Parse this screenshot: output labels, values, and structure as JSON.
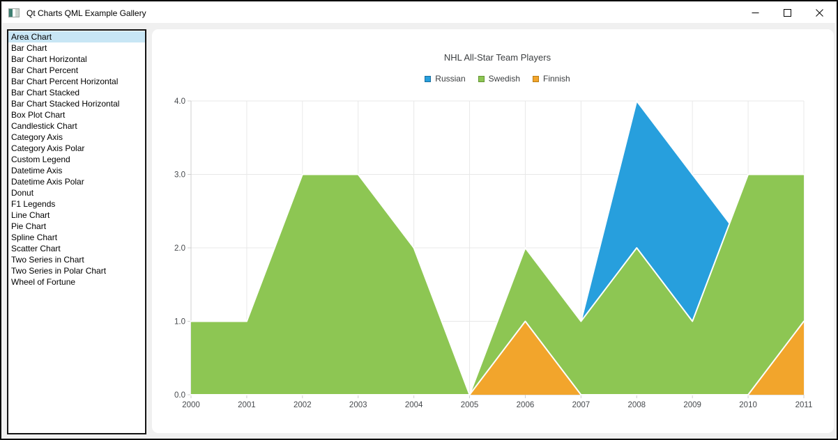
{
  "window": {
    "title": "Qt Charts QML Example Gallery",
    "controls": {
      "minimize": "minimize",
      "maximize": "maximize",
      "close": "close"
    }
  },
  "sidebar": {
    "selected_index": 0,
    "selection_color": "#c8e6f5",
    "items": [
      "Area Chart",
      "Bar Chart",
      "Bar Chart Horizontal",
      "Bar Chart Percent",
      "Bar Chart Percent Horizontal",
      "Bar Chart Stacked",
      "Bar Chart Stacked Horizontal",
      "Box Plot Chart",
      "Candlestick Chart",
      "Category Axis",
      "Category Axis Polar",
      "Custom Legend",
      "Datetime Axis",
      "Datetime Axis Polar",
      "Donut",
      "F1 Legends",
      "Line Chart",
      "Pie Chart",
      "Spline Chart",
      "Scatter Chart",
      "Two Series in Chart",
      "Two Series in Polar Chart",
      "Wheel of Fortune"
    ]
  },
  "chart_data": {
    "type": "area",
    "title": "NHL All-Star Team Players",
    "xlabel": "",
    "ylabel": "",
    "x": [
      2000,
      2001,
      2002,
      2003,
      2004,
      2005,
      2006,
      2007,
      2008,
      2009,
      2010,
      2011
    ],
    "xtick_labels": [
      "2000",
      "2001",
      "2002",
      "2003",
      "2004",
      "2005",
      "2006",
      "2007",
      "2008",
      "2009",
      "2010",
      "2011"
    ],
    "ytick_labels": [
      "0.0",
      "1.0",
      "2.0",
      "3.0",
      "4.0"
    ],
    "xlim": [
      2000,
      2011
    ],
    "ylim": [
      0,
      4
    ],
    "grid": true,
    "legend_position": "top",
    "series": [
      {
        "name": "Russian",
        "fill": "#279fdd",
        "marker_border": "#1a6e9e",
        "values": [
          1,
          1,
          1,
          1,
          1,
          0,
          1,
          1,
          4,
          3,
          2,
          1
        ]
      },
      {
        "name": "Swedish",
        "fill": "#8dc653",
        "marker_border": "#639433",
        "values": [
          1,
          1,
          3,
          3,
          2,
          0,
          2,
          1,
          2,
          1,
          3,
          3
        ]
      },
      {
        "name": "Finnish",
        "fill": "#f2a52c",
        "marker_border": "#b97c14",
        "values": [
          0,
          0,
          0,
          0,
          0,
          0,
          1,
          0,
          0,
          0,
          0,
          1
        ]
      }
    ],
    "edge_color": "#ffffff",
    "grid_color": "#e8e8e8",
    "axis_color": "#cfcfcf",
    "label_color": "#46494d"
  }
}
